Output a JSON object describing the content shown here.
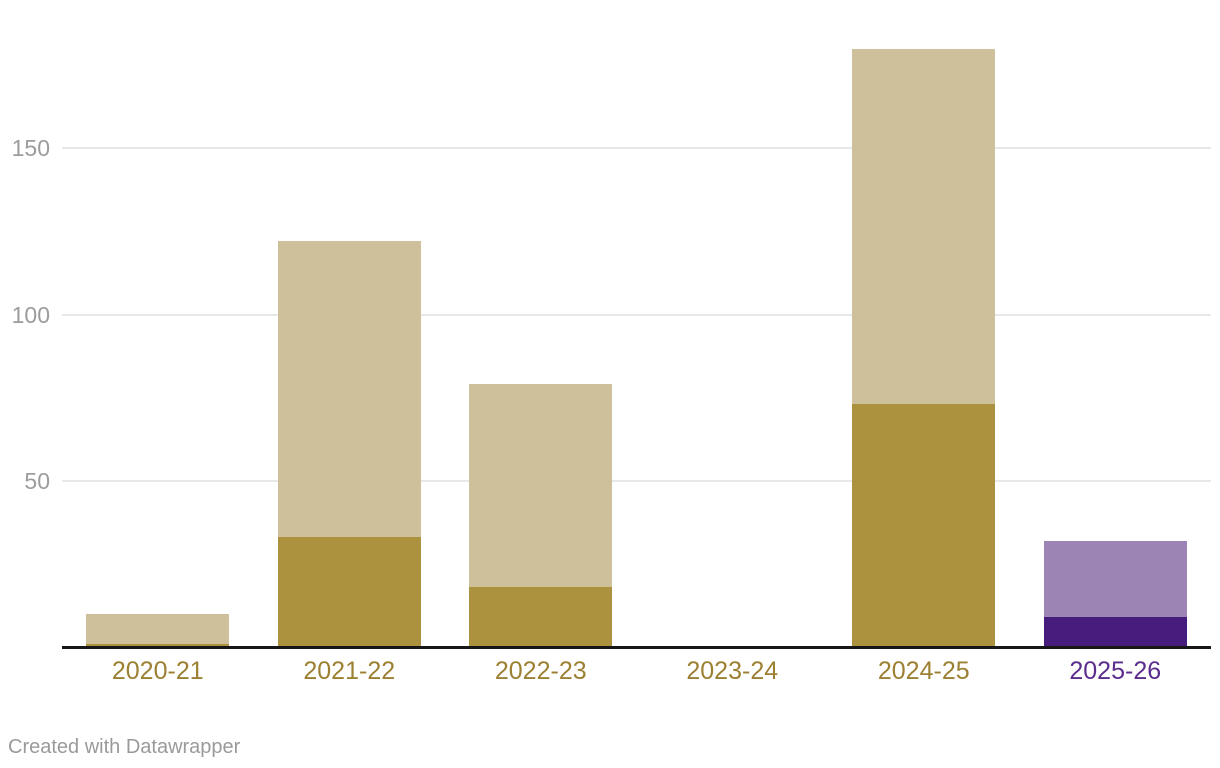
{
  "chart_data": {
    "type": "bar",
    "stacked": true,
    "title": "",
    "xlabel": "",
    "ylabel": "",
    "categories": [
      "2020-21",
      "2021-22",
      "2022-23",
      "2023-24",
      "2024-25",
      "2025-26"
    ],
    "series": [
      {
        "name": "bottom-dark-segment",
        "values": [
          1,
          33,
          18,
          0,
          73,
          9
        ]
      },
      {
        "name": "top-light-segment",
        "values": [
          9,
          89,
          61,
          0,
          107,
          23
        ]
      }
    ],
    "y_ticks": [
      50,
      100,
      150
    ],
    "ylim": [
      0,
      195
    ],
    "grid": "horizontal",
    "legend": "none",
    "colors": {
      "bottom_segment": [
        "#AC923E",
        "#AC923E",
        "#AC923E",
        "#AC923E",
        "#AC923E",
        "#461D7C"
      ],
      "top_segment": [
        "#CEC09A",
        "#CEC09A",
        "#CEC09A",
        "#CEC09A",
        "#CEC09A",
        "#9C84B4"
      ],
      "x_labels": [
        "#9C8032",
        "#9C8032",
        "#9C8032",
        "#9C8032",
        "#9C8032",
        "#5A2C8C"
      ],
      "tick_label": "#9C9C9C",
      "gridline": "#E8E8E8",
      "axis_line": "#171717"
    }
  },
  "footer": {
    "credit": "Created with Datawrapper"
  }
}
